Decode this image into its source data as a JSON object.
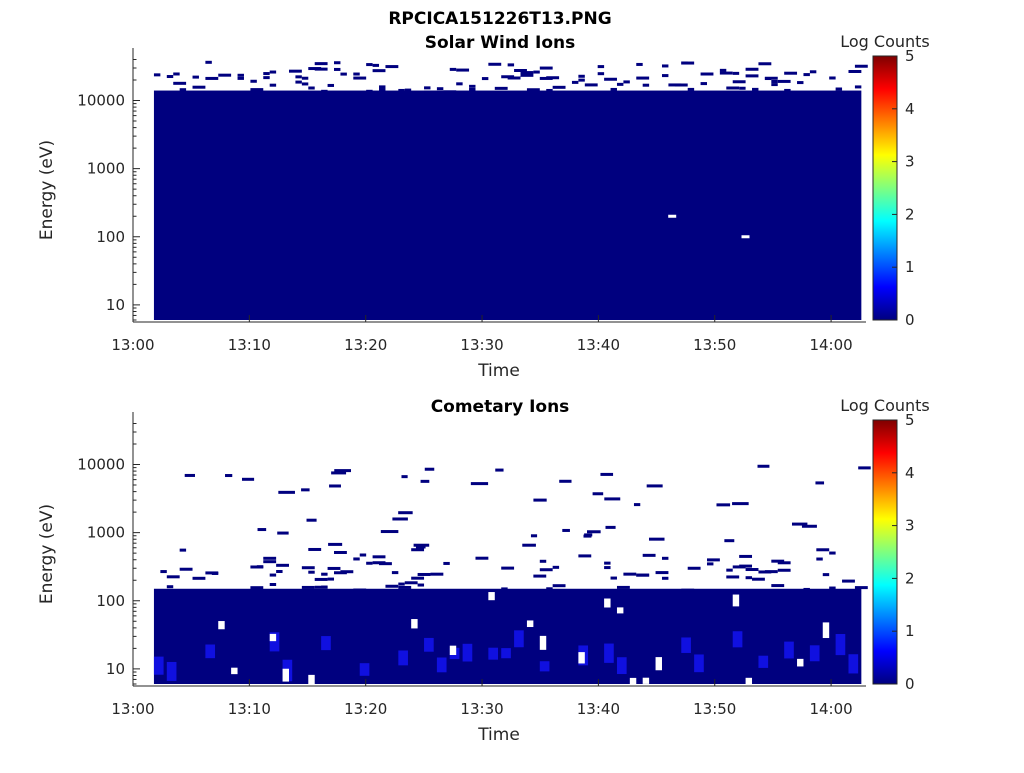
{
  "figure_title": "RPCICA151226T13.PNG",
  "colormap": [
    "#00007f",
    "#0000ff",
    "#007fff",
    "#00ffff",
    "#7fff7f",
    "#ffff00",
    "#ff7f00",
    "#ff0000",
    "#7f0000"
  ],
  "chart_data": [
    {
      "type": "heatmap",
      "title": "Solar Wind Ions",
      "xlabel": "Time",
      "ylabel": "Energy (eV)",
      "x_ticks": [
        "13:00",
        "13:10",
        "13:20",
        "13:30",
        "13:40",
        "13:50",
        "14:00"
      ],
      "xlim_minutes": [
        0,
        63
      ],
      "data_x_minutes": [
        1.8,
        62.6
      ],
      "y_scale": "log",
      "y_ticks": [
        "10",
        "100",
        "1000",
        "10000"
      ],
      "ylim": [
        6,
        45000
      ],
      "fill_top_eV": 14000,
      "fill_color": "#00007f",
      "colorbar": {
        "label": "Log Counts",
        "ticks": [
          "0",
          "1",
          "2",
          "3",
          "4",
          "5"
        ],
        "range": [
          0,
          5
        ]
      }
    },
    {
      "type": "heatmap",
      "title": "Cometary Ions",
      "xlabel": "Time",
      "ylabel": "Energy (eV)",
      "x_ticks": [
        "13:00",
        "13:10",
        "13:20",
        "13:30",
        "13:40",
        "13:50",
        "14:00"
      ],
      "xlim_minutes": [
        0,
        63
      ],
      "data_x_minutes": [
        1.8,
        62.6
      ],
      "y_scale": "log",
      "y_ticks": [
        "10",
        "100",
        "1000",
        "10000"
      ],
      "ylim": [
        6,
        45000
      ],
      "fill_top_eV": 150,
      "fill_color": "#00007f",
      "colorbar": {
        "label": "Log Counts",
        "ticks": [
          "0",
          "1",
          "2",
          "3",
          "4",
          "5"
        ],
        "range": [
          0,
          5
        ]
      }
    }
  ]
}
